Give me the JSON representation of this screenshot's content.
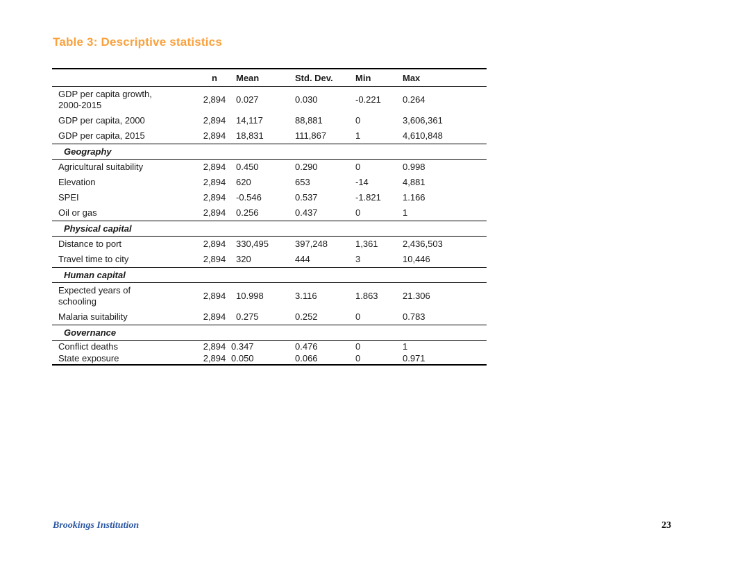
{
  "page": {
    "title": "Table 3: Descriptive statistics",
    "footer": {
      "left_text": "Brookings Institution",
      "page_number": "23"
    }
  },
  "colors": {
    "title_orange": "#F9A13C",
    "footer_blue": "#2B57A2",
    "table_line": "#000000",
    "text": "#1a1a1a"
  },
  "table": {
    "columns": [
      "",
      "n",
      "Mean",
      "Std. Dev.",
      "Min",
      "Max"
    ],
    "rows": [
      {
        "type": "data",
        "label": "GDP per capita growth,\n2000-2015",
        "n": "2,894",
        "mean": "0.027",
        "std": "0.030",
        "min": "-0.221",
        "max": "0.264"
      },
      {
        "type": "data",
        "label": "GDP per capita, 2000",
        "n": "2,894",
        "mean": "14,117",
        "std": "88,881",
        "min": "0",
        "max": "3,606,361"
      },
      {
        "type": "data",
        "label": "GDP per capita, 2015",
        "n": "2,894",
        "mean": "18,831",
        "std": "111,867",
        "min": "1",
        "max": "4,610,848"
      },
      {
        "type": "section",
        "label": "Geography"
      },
      {
        "type": "data",
        "label": "Agricultural suitability",
        "n": "2,894",
        "mean": "0.450",
        "std": "0.290",
        "min": "0",
        "max": "0.998"
      },
      {
        "type": "data",
        "label": "Elevation",
        "n": "2,894",
        "mean": "620",
        "std": "653",
        "min": "-14",
        "max": "4,881"
      },
      {
        "type": "data",
        "label": "SPEI",
        "n": "2,894",
        "mean": "-0.546",
        "std": "0.537",
        "min": "-1.821",
        "max": "1.166"
      },
      {
        "type": "data",
        "label": "Oil or gas",
        "n": "2,894",
        "mean": "0.256",
        "std": "0.437",
        "min": "0",
        "max": "1"
      },
      {
        "type": "section",
        "label": "Physical capital"
      },
      {
        "type": "data",
        "label": "Distance to port",
        "n": "2,894",
        "mean": "330,495",
        "std": "397,248",
        "min": "1,361",
        "max": "2,436,503"
      },
      {
        "type": "data",
        "label": "Travel time to city",
        "n": "2,894",
        "mean": "320",
        "std": "444",
        "min": "3",
        "max": "10,446"
      },
      {
        "type": "section",
        "label": "Human capital"
      },
      {
        "type": "data",
        "label": "Expected years of\nschooling",
        "n": "2,894",
        "mean": "10.998",
        "std": "3.116",
        "min": "1.863",
        "max": "21.306"
      },
      {
        "type": "data",
        "label": "Malaria suitability",
        "n": "2,894",
        "mean": "0.275",
        "std": "0.252",
        "min": "0",
        "max": "0.783"
      },
      {
        "type": "section",
        "label": "Governance"
      },
      {
        "type": "data",
        "label": "Conflict deaths",
        "n": "2,894",
        "mean": "0.347",
        "std": "0.476",
        "min": "0",
        "max": "1",
        "tight": true
      },
      {
        "type": "data",
        "label": "State exposure",
        "n": "2,894",
        "mean": "0.050",
        "std": "0.066",
        "min": "0",
        "max": "0.971",
        "tight": true
      }
    ]
  }
}
